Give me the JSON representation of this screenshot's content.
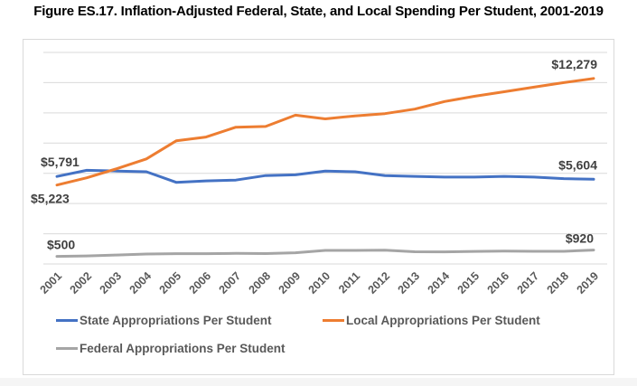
{
  "title": "Figure ES.17. Inflation-Adjusted Federal, State, and Local Spending Per Student, 2001-2019",
  "chart_data": {
    "type": "line",
    "title": "Figure ES.17. Inflation-Adjusted Federal, State, and Local Spending Per Student, 2001-2019",
    "xlabel": "",
    "ylabel": "",
    "ylim": [
      0,
      14000
    ],
    "grid": true,
    "y_axis_labels_visible": false,
    "legend_position": "bottom",
    "categories": [
      "2001",
      "2002",
      "2003",
      "2004",
      "2005",
      "2006",
      "2007",
      "2008",
      "2009",
      "2010",
      "2011",
      "2012",
      "2013",
      "2014",
      "2015",
      "2016",
      "2017",
      "2018",
      "2019"
    ],
    "series": [
      {
        "name": "State Appropriations Per Student",
        "color": "#4472c4",
        "values": [
          5791,
          6200,
          6150,
          6100,
          5400,
          5500,
          5550,
          5850,
          5900,
          6150,
          6100,
          5850,
          5800,
          5750,
          5750,
          5800,
          5750,
          5650,
          5604
        ],
        "data_labels": [
          {
            "index": 0,
            "text": "$5,791",
            "position": "above"
          },
          {
            "index": 18,
            "text": "$5,604",
            "position": "above"
          }
        ]
      },
      {
        "name": "Local Appropriations Per Student",
        "color": "#ed7d31",
        "values": [
          5223,
          5700,
          6300,
          6950,
          8150,
          8400,
          9050,
          9100,
          9850,
          9600,
          9800,
          9950,
          10250,
          10750,
          11100,
          11400,
          11700,
          12000,
          12279
        ],
        "data_labels": [
          {
            "index": 0,
            "text": "$5,223",
            "position": "below"
          },
          {
            "index": 18,
            "text": "$12,279",
            "position": "above"
          }
        ]
      },
      {
        "name": "Federal Appropriations Per Student",
        "color": "#a5a5a5",
        "values": [
          500,
          530,
          590,
          660,
          680,
          680,
          700,
          690,
          740,
          900,
          900,
          910,
          810,
          800,
          830,
          850,
          840,
          840,
          920
        ],
        "data_labels": [
          {
            "index": 0,
            "text": "$500",
            "position": "above"
          },
          {
            "index": 18,
            "text": "$920",
            "position": "above"
          }
        ]
      }
    ]
  }
}
